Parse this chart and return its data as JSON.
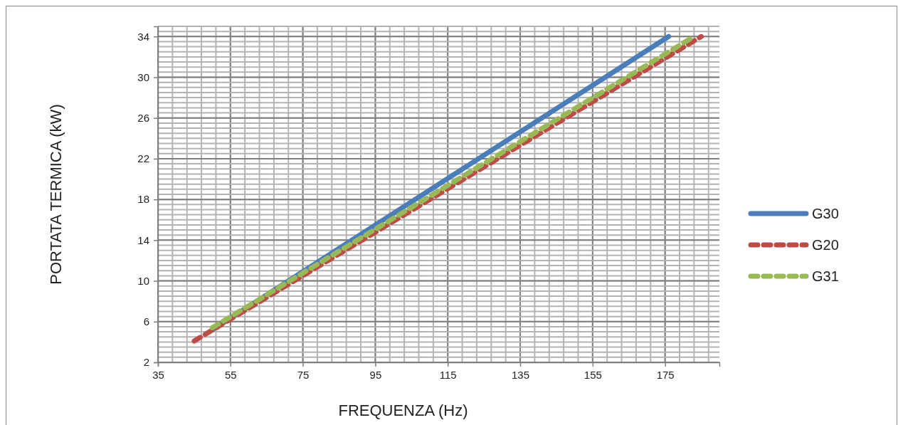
{
  "chart_data": {
    "type": "line",
    "xlabel": "FREQUENZA (Hz)",
    "ylabel": "PORTATA TERMICA (kW)",
    "xlim": [
      35,
      190
    ],
    "xticks": [
      35,
      55,
      75,
      95,
      115,
      135,
      155,
      175
    ],
    "ylim": [
      2,
      35
    ],
    "yticks": [
      2,
      6,
      10,
      14,
      18,
      22,
      26,
      30,
      34
    ],
    "grid": true,
    "legend": "right",
    "series": [
      {
        "name": "G30",
        "color": "#4a7ebb",
        "x": [
          50,
          176
        ],
        "values": [
          5.2,
          34
        ],
        "line_style": "solid"
      },
      {
        "name": "G20",
        "color": "#be4b48",
        "x": [
          45,
          185
        ],
        "values": [
          4.1,
          34
        ],
        "line_style": "dashed"
      },
      {
        "name": "G31",
        "color": "#98b954",
        "x": [
          50,
          183
        ],
        "values": [
          5.4,
          34
        ],
        "line_style": "dashed"
      }
    ]
  }
}
